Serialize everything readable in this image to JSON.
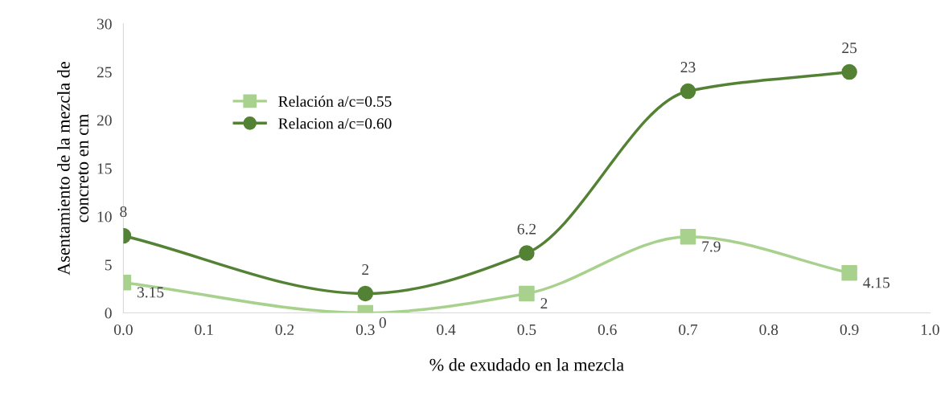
{
  "chart_data": {
    "type": "line",
    "xlabel": "% de exudado en la mezcla",
    "ylabel": "Asentamiento de la mezcla de\nconcreto en cm",
    "x": [
      0.0,
      0.3,
      0.5,
      0.7,
      0.9
    ],
    "series": [
      {
        "name": "Relación a/c=0.55",
        "color": "#a9d18e",
        "marker": "square",
        "values": [
          3.15,
          0,
          2,
          7.9,
          4.15
        ]
      },
      {
        "name": "Relacion a/c=0.60",
        "color": "#548235",
        "marker": "circle",
        "values": [
          8,
          2,
          6.2,
          23,
          25
        ]
      }
    ],
    "xlim": [
      0,
      1.0
    ],
    "xticks": [
      {
        "value": 0,
        "label": "0.0"
      },
      {
        "value": 0.1,
        "label": "0.1"
      },
      {
        "value": 0.2,
        "label": "0.2"
      },
      {
        "value": 0.3,
        "label": "0.3"
      },
      {
        "value": 0.4,
        "label": "0.4"
      },
      {
        "value": 0.5,
        "label": "0.5"
      },
      {
        "value": 0.6,
        "label": "0.6"
      },
      {
        "value": 0.7,
        "label": "0.7"
      },
      {
        "value": 0.8,
        "label": "0.8"
      },
      {
        "value": 0.9,
        "label": "0.9"
      },
      {
        "value": 1.0,
        "label": "1.0"
      }
    ],
    "ylim": [
      0,
      30
    ],
    "yticks": [
      0,
      5,
      10,
      15,
      20,
      25,
      30
    ],
    "data_labels": true,
    "legend": "top left",
    "grid": false
  }
}
